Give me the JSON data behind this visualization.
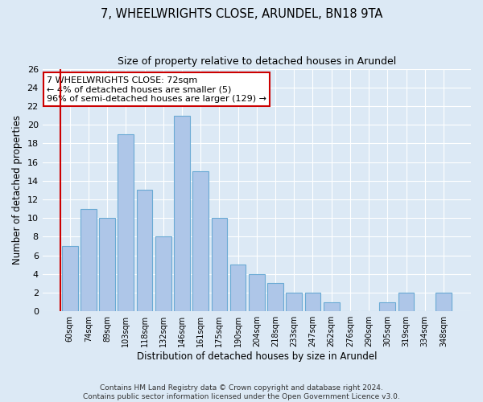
{
  "title": "7, WHEELWRIGHTS CLOSE, ARUNDEL, BN18 9TA",
  "subtitle": "Size of property relative to detached houses in Arundel",
  "xlabel": "Distribution of detached houses by size in Arundel",
  "ylabel": "Number of detached properties",
  "bar_labels": [
    "60sqm",
    "74sqm",
    "89sqm",
    "103sqm",
    "118sqm",
    "132sqm",
    "146sqm",
    "161sqm",
    "175sqm",
    "190sqm",
    "204sqm",
    "218sqm",
    "233sqm",
    "247sqm",
    "262sqm",
    "276sqm",
    "290sqm",
    "305sqm",
    "319sqm",
    "334sqm",
    "348sqm"
  ],
  "bar_values": [
    7,
    11,
    10,
    19,
    13,
    8,
    21,
    15,
    10,
    5,
    4,
    3,
    2,
    2,
    1,
    0,
    0,
    1,
    2,
    0,
    2
  ],
  "bar_color": "#aec6e8",
  "bar_edge_color": "#6aaad4",
  "bg_color": "#dce9f5",
  "annotation_text": "7 WHEELWRIGHTS CLOSE: 72sqm\n← 4% of detached houses are smaller (5)\n96% of semi-detached houses are larger (129) →",
  "annotation_box_color": "#ffffff",
  "annotation_box_edge": "#cc0000",
  "property_line_color": "#cc0000",
  "ylim": [
    0,
    26
  ],
  "yticks": [
    0,
    2,
    4,
    6,
    8,
    10,
    12,
    14,
    16,
    18,
    20,
    22,
    24,
    26
  ],
  "footer_line1": "Contains HM Land Registry data © Crown copyright and database right 2024.",
  "footer_line2": "Contains public sector information licensed under the Open Government Licence v3.0."
}
